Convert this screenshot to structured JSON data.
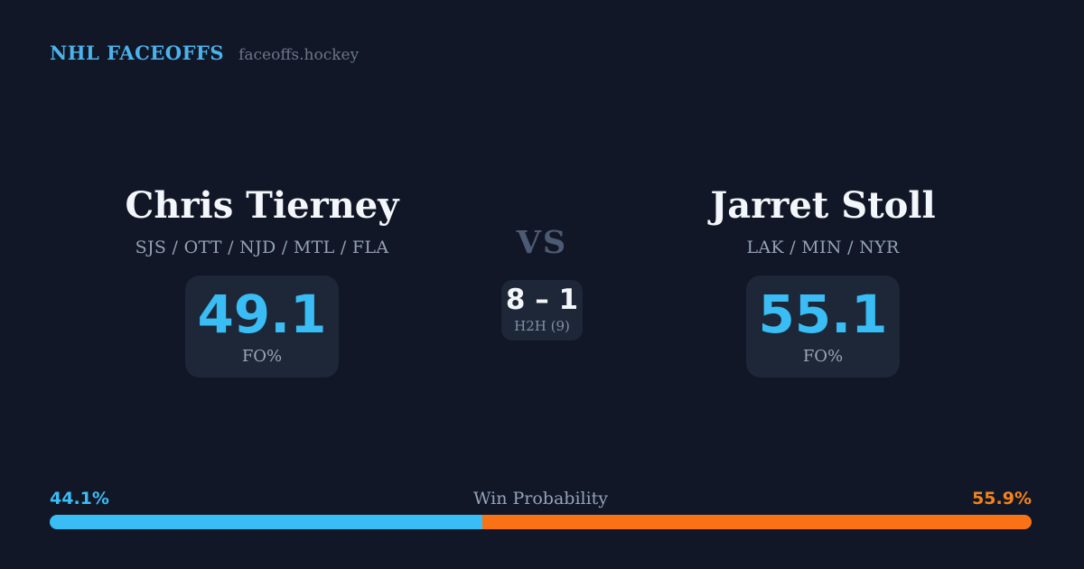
{
  "meta": {
    "colors": {
      "background": "#111726",
      "card": "#1d2737",
      "accent_blue": "#3abcf5",
      "accent_orange": "#f97316",
      "text_primary": "#f3f6fa",
      "text_muted": "#93a1b5"
    }
  },
  "header": {
    "brand": "NHL FACEOFFS",
    "site": "faceoffs.hockey"
  },
  "matchup": {
    "vs_label": "VS",
    "h2h": {
      "score": "8 – 1",
      "label": "H2H (9)"
    }
  },
  "players": {
    "left": {
      "name": "Chris Tierney",
      "teams": "SJS / OTT / NJD / MTL / FLA",
      "fo_pct": "49.1",
      "fo_label": "FO%"
    },
    "right": {
      "name": "Jarret Stoll",
      "teams": "LAK / MIN / NYR",
      "fo_pct": "55.1",
      "fo_label": "FO%"
    }
  },
  "win_probability": {
    "label": "Win Probability",
    "left_pct": "44.1%",
    "right_pct": "55.9%",
    "left_value": 44.1,
    "right_value": 55.9
  }
}
